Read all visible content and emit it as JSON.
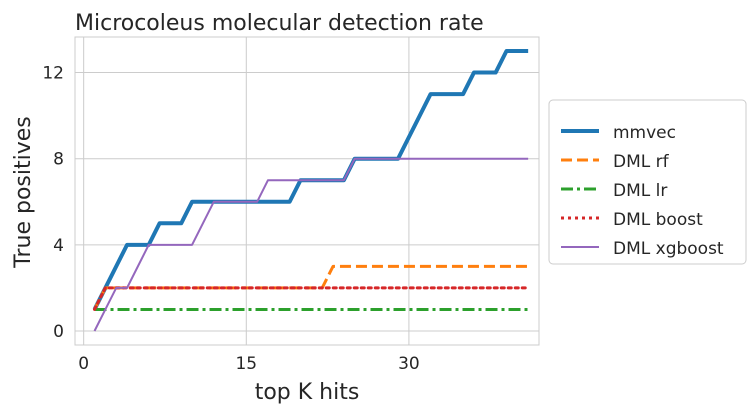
{
  "chart_data": {
    "type": "line",
    "title": "Microcoleus molecular detection rate",
    "xlabel": "top K hits",
    "ylabel": "True positives",
    "xlim": [
      -0.8,
      42
    ],
    "ylim": [
      -0.65,
      13.65
    ],
    "xticks": [
      0,
      15,
      30
    ],
    "yticks": [
      0,
      4,
      8,
      12
    ],
    "grid": true,
    "legend_position": "right-outside",
    "x": [
      1,
      2,
      3,
      4,
      5,
      6,
      7,
      8,
      9,
      10,
      11,
      12,
      13,
      14,
      15,
      16,
      17,
      18,
      19,
      20,
      21,
      22,
      23,
      24,
      25,
      26,
      27,
      28,
      29,
      30,
      31,
      32,
      33,
      34,
      35,
      36,
      37,
      38,
      39,
      40,
      41
    ],
    "series": [
      {
        "name": "mmvec",
        "color": "#1f77b4",
        "dash": "solid",
        "width": 4,
        "values": [
          1,
          2,
          3,
          4,
          4,
          4,
          5,
          5,
          5,
          6,
          6,
          6,
          6,
          6,
          6,
          6,
          6,
          6,
          6,
          7,
          7,
          7,
          7,
          7,
          8,
          8,
          8,
          8,
          8,
          9,
          10,
          11,
          11,
          11,
          11,
          12,
          12,
          12,
          13,
          13,
          13
        ]
      },
      {
        "name": "DML rf",
        "color": "#ff7f0e",
        "dash": "dashed",
        "width": 3,
        "values": [
          1,
          2,
          2,
          2,
          2,
          2,
          2,
          2,
          2,
          2,
          2,
          2,
          2,
          2,
          2,
          2,
          2,
          2,
          2,
          2,
          2,
          2,
          3,
          3,
          3,
          3,
          3,
          3,
          3,
          3,
          3,
          3,
          3,
          3,
          3,
          3,
          3,
          3,
          3,
          3,
          3
        ]
      },
      {
        "name": "DML lr",
        "color": "#2ca02c",
        "dash": "dashdot",
        "width": 3,
        "values": [
          1,
          1,
          1,
          1,
          1,
          1,
          1,
          1,
          1,
          1,
          1,
          1,
          1,
          1,
          1,
          1,
          1,
          1,
          1,
          1,
          1,
          1,
          1,
          1,
          1,
          1,
          1,
          1,
          1,
          1,
          1,
          1,
          1,
          1,
          1,
          1,
          1,
          1,
          1,
          1,
          1
        ]
      },
      {
        "name": "DML boost",
        "color": "#d62728",
        "dash": "dotted",
        "width": 3,
        "values": [
          1,
          2,
          2,
          2,
          2,
          2,
          2,
          2,
          2,
          2,
          2,
          2,
          2,
          2,
          2,
          2,
          2,
          2,
          2,
          2,
          2,
          2,
          2,
          2,
          2,
          2,
          2,
          2,
          2,
          2,
          2,
          2,
          2,
          2,
          2,
          2,
          2,
          2,
          2,
          2,
          2
        ]
      },
      {
        "name": "DML xgboost",
        "color": "#9467bd",
        "dash": "solid",
        "width": 2,
        "values": [
          0,
          1,
          2,
          2,
          3,
          4,
          4,
          4,
          4,
          4,
          5,
          6,
          6,
          6,
          6,
          6,
          7,
          7,
          7,
          7,
          7,
          7,
          7,
          7,
          8,
          8,
          8,
          8,
          8,
          8,
          8,
          8,
          8,
          8,
          8,
          8,
          8,
          8,
          8,
          8,
          8
        ]
      }
    ]
  }
}
